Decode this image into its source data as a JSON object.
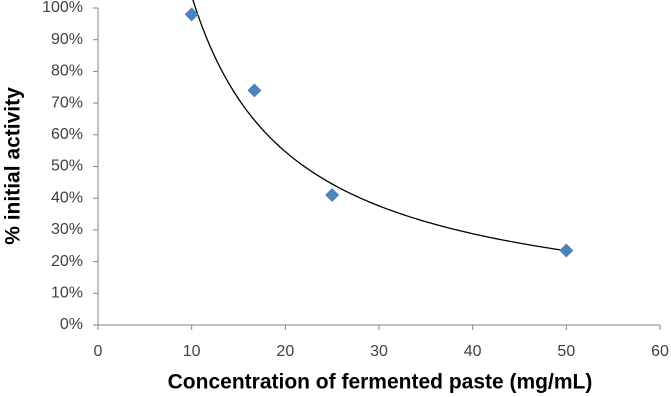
{
  "chart_data": {
    "type": "scatter",
    "xlabel": "Concentration of fermented paste (mg/mL)",
    "ylabel": "% initial activity",
    "series": [
      {
        "color": "#4f81bd",
        "x": [
          10,
          16.7,
          25,
          50
        ],
        "values": [
          98,
          74,
          41,
          23.5
        ]
      }
    ],
    "trendline": "power",
    "trendline_color": "#000000",
    "xlim": [
      0,
      60
    ],
    "xticks": [
      0,
      10,
      20,
      30,
      40,
      50,
      60
    ],
    "ylim": [
      0,
      100
    ],
    "yticks": [
      {
        "value": 0,
        "label": "0%"
      },
      {
        "value": 10,
        "label": "10%"
      },
      {
        "value": 20,
        "label": "20%"
      },
      {
        "value": 30,
        "label": "30%"
      },
      {
        "value": 40,
        "label": "40%"
      },
      {
        "value": 50,
        "label": "50%"
      },
      {
        "value": 60,
        "label": "60%"
      },
      {
        "value": 70,
        "label": "70%"
      },
      {
        "value": 80,
        "label": "80%"
      },
      {
        "value": 90,
        "label": "90%"
      },
      {
        "value": 100,
        "label": "100%"
      }
    ],
    "grid": false
  }
}
